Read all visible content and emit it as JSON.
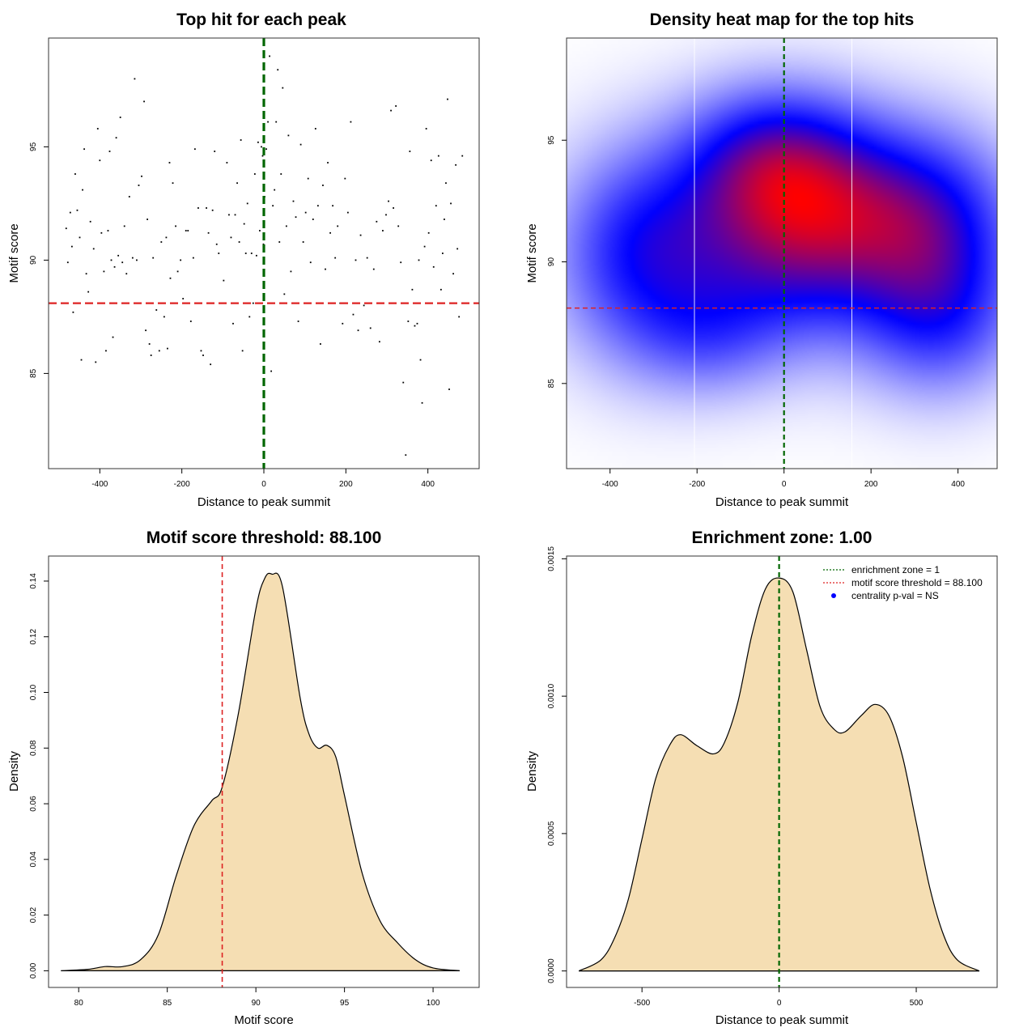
{
  "chart_data": [
    {
      "type": "scatter",
      "title": "Top hit for each peak",
      "xlabel": "Distance to peak summit",
      "ylabel": "Motif score",
      "xlim": [
        -525,
        525
      ],
      "ylim": [
        80.8,
        99.8
      ],
      "xticks": [
        -400,
        -200,
        0,
        200,
        400
      ],
      "yticks": [
        85,
        90,
        95
      ],
      "hlines": [
        {
          "y": 88.1,
          "color": "#dd2222",
          "style": "dashed"
        }
      ],
      "vlines": [
        {
          "x": 0,
          "color": "#006600",
          "style": "dashed"
        }
      ],
      "points": [
        [
          -482,
          91.4
        ],
        [
          -478,
          89.9
        ],
        [
          -472,
          92.1
        ],
        [
          -468,
          90.6
        ],
        [
          -465,
          87.7
        ],
        [
          -460,
          93.8
        ],
        [
          -455,
          92.2
        ],
        [
          -449,
          91.0
        ],
        [
          -445,
          85.6
        ],
        [
          -442,
          93.1
        ],
        [
          -438,
          94.9
        ],
        [
          -433,
          89.4
        ],
        [
          -428,
          88.6
        ],
        [
          -423,
          91.7
        ],
        [
          -415,
          90.5
        ],
        [
          -410,
          85.5
        ],
        [
          -405,
          95.8
        ],
        [
          -400,
          94.4
        ],
        [
          -396,
          91.2
        ],
        [
          -390,
          89.5
        ],
        [
          -385,
          86.0
        ],
        [
          -380,
          91.3
        ],
        [
          -376,
          94.8
        ],
        [
          -372,
          90.0
        ],
        [
          -368,
          86.6
        ],
        [
          -364,
          89.7
        ],
        [
          -360,
          95.4
        ],
        [
          -355,
          90.2
        ],
        [
          -350,
          96.3
        ],
        [
          -345,
          89.9
        ],
        [
          -340,
          91.5
        ],
        [
          -335,
          89.4
        ],
        [
          -328,
          92.8
        ],
        [
          -320,
          90.1
        ],
        [
          -315,
          98.0
        ],
        [
          -310,
          90.0
        ],
        [
          -305,
          93.3
        ],
        [
          -298,
          93.7
        ],
        [
          -292,
          97.0
        ],
        [
          -288,
          86.9
        ],
        [
          -284,
          91.8
        ],
        [
          -279,
          86.3
        ],
        [
          -275,
          85.8
        ],
        [
          -270,
          90.1
        ],
        [
          -262,
          87.8
        ],
        [
          -255,
          86.0
        ],
        [
          -250,
          90.8
        ],
        [
          -243,
          87.5
        ],
        [
          -238,
          91.0
        ],
        [
          -235,
          86.1
        ],
        [
          -230,
          94.3
        ],
        [
          -228,
          89.2
        ],
        [
          -222,
          93.4
        ],
        [
          -215,
          91.5
        ],
        [
          -210,
          89.5
        ],
        [
          -203,
          90.0
        ],
        [
          -197,
          88.3
        ],
        [
          -190,
          91.3
        ],
        [
          -185,
          91.3
        ],
        [
          -178,
          87.3
        ],
        [
          -172,
          90.1
        ],
        [
          -168,
          94.9
        ],
        [
          -160,
          92.3
        ],
        [
          -153,
          86.0
        ],
        [
          -148,
          85.8
        ],
        [
          -140,
          92.3
        ],
        [
          -135,
          91.2
        ],
        [
          -130,
          85.4
        ],
        [
          -125,
          92.2
        ],
        [
          -120,
          94.8
        ],
        [
          -115,
          90.7
        ],
        [
          -110,
          90.3
        ],
        [
          -105,
          88.1
        ],
        [
          -98,
          89.1
        ],
        [
          -90,
          94.3
        ],
        [
          -85,
          92.0
        ],
        [
          -80,
          91.0
        ],
        [
          -75,
          87.2
        ],
        [
          -70,
          92.0
        ],
        [
          -65,
          93.4
        ],
        [
          -60,
          90.8
        ],
        [
          -56,
          95.3
        ],
        [
          -52,
          86.0
        ],
        [
          -48,
          91.6
        ],
        [
          -44,
          90.3
        ],
        [
          -40,
          92.5
        ],
        [
          -35,
          87.5
        ],
        [
          -30,
          90.3
        ],
        [
          -26,
          88.1
        ],
        [
          -22,
          93.8
        ],
        [
          -18,
          90.2
        ],
        [
          -14,
          95.2
        ],
        [
          -10,
          91.3
        ],
        [
          -6,
          95.0
        ],
        [
          -3,
          94.6
        ],
        [
          -1,
          90.7
        ],
        [
          2,
          92.8
        ],
        [
          6,
          94.9
        ],
        [
          10,
          96.1
        ],
        [
          14,
          99.0
        ],
        [
          18,
          85.1
        ],
        [
          22,
          92.4
        ],
        [
          26,
          93.1
        ],
        [
          30,
          96.1
        ],
        [
          34,
          98.4
        ],
        [
          38,
          90.8
        ],
        [
          42,
          93.8
        ],
        [
          46,
          97.6
        ],
        [
          50,
          88.5
        ],
        [
          55,
          91.5
        ],
        [
          60,
          95.5
        ],
        [
          66,
          89.5
        ],
        [
          72,
          92.6
        ],
        [
          78,
          91.9
        ],
        [
          84,
          87.3
        ],
        [
          90,
          95.1
        ],
        [
          96,
          90.8
        ],
        [
          102,
          92.1
        ],
        [
          108,
          93.6
        ],
        [
          114,
          89.9
        ],
        [
          120,
          91.8
        ],
        [
          126,
          95.8
        ],
        [
          132,
          92.4
        ],
        [
          138,
          86.3
        ],
        [
          144,
          93.3
        ],
        [
          150,
          89.6
        ],
        [
          156,
          94.3
        ],
        [
          162,
          91.2
        ],
        [
          168,
          92.4
        ],
        [
          174,
          90.1
        ],
        [
          180,
          91.5
        ],
        [
          186,
          88.1
        ],
        [
          192,
          87.2
        ],
        [
          198,
          93.6
        ],
        [
          205,
          92.1
        ],
        [
          212,
          96.1
        ],
        [
          218,
          87.6
        ],
        [
          224,
          90.0
        ],
        [
          230,
          86.9
        ],
        [
          236,
          91.1
        ],
        [
          244,
          88.0
        ],
        [
          252,
          90.1
        ],
        [
          260,
          87.0
        ],
        [
          268,
          89.6
        ],
        [
          275,
          91.7
        ],
        [
          282,
          86.4
        ],
        [
          290,
          91.3
        ],
        [
          298,
          92.0
        ],
        [
          304,
          92.6
        ],
        [
          310,
          96.6
        ],
        [
          316,
          92.3
        ],
        [
          322,
          96.8
        ],
        [
          328,
          91.5
        ],
        [
          334,
          89.9
        ],
        [
          340,
          84.6
        ],
        [
          346,
          81.4
        ],
        [
          352,
          87.3
        ],
        [
          356,
          94.8
        ],
        [
          362,
          88.7
        ],
        [
          368,
          87.1
        ],
        [
          374,
          87.2
        ],
        [
          378,
          90.0
        ],
        [
          382,
          85.6
        ],
        [
          386,
          83.7
        ],
        [
          392,
          90.6
        ],
        [
          396,
          95.8
        ],
        [
          402,
          91.2
        ],
        [
          408,
          94.4
        ],
        [
          414,
          89.7
        ],
        [
          420,
          92.4
        ],
        [
          426,
          94.6
        ],
        [
          432,
          88.7
        ],
        [
          436,
          90.3
        ],
        [
          440,
          91.8
        ],
        [
          444,
          93.4
        ],
        [
          448,
          97.1
        ],
        [
          452,
          84.3
        ],
        [
          456,
          92.5
        ],
        [
          462,
          89.4
        ],
        [
          468,
          94.2
        ],
        [
          472,
          90.5
        ],
        [
          476,
          87.5
        ],
        [
          484,
          94.6
        ]
      ]
    },
    {
      "type": "heatmap",
      "title": "Density heat map for the top hits",
      "xlabel": "Distance to peak summit",
      "ylabel": "Motif score",
      "xlim": [
        -500,
        490
      ],
      "ylim": [
        81.5,
        99.2
      ],
      "xticks": [
        -400,
        -200,
        0,
        200,
        400
      ],
      "yticks": [
        85,
        90,
        95
      ],
      "hlines": [
        {
          "y": 88.1,
          "color": "#dd2222",
          "style": "dashed"
        }
      ],
      "vlines": [
        {
          "x": 0,
          "color": "#006600",
          "style": "dashed"
        }
      ],
      "boundaries": [
        -206,
        156
      ],
      "color_scale": [
        "#ffffff",
        "#0000ff",
        "#ff0000"
      ],
      "blobs": [
        {
          "x": 30,
          "y": 91.0,
          "sx": 190,
          "sy": 2.7,
          "w": 1.0
        },
        {
          "x": -20,
          "y": 94.2,
          "sx": 140,
          "sy": 2.0,
          "w": 0.72
        },
        {
          "x": -330,
          "y": 90.3,
          "sx": 130,
          "sy": 2.8,
          "w": 0.62
        },
        {
          "x": 350,
          "y": 90.4,
          "sx": 130,
          "sy": 2.8,
          "w": 0.6
        },
        {
          "x": 230,
          "y": 92.5,
          "sx": 160,
          "sy": 2.2,
          "w": 0.35
        },
        {
          "x": -170,
          "y": 87.0,
          "sx": 120,
          "sy": 1.7,
          "w": 0.3
        },
        {
          "x": 360,
          "y": 87.3,
          "sx": 120,
          "sy": 2.0,
          "w": 0.3
        }
      ]
    },
    {
      "type": "area",
      "title": "Motif score threshold: 88.100",
      "xlabel": "Motif score",
      "ylabel": "Density",
      "xlim": [
        78.3,
        102.6
      ],
      "ylim": [
        -0.006,
        0.149
      ],
      "xticks": [
        80,
        85,
        90,
        95,
        100
      ],
      "yticks": [
        0.0,
        0.02,
        0.04,
        0.06,
        0.08,
        0.1,
        0.12,
        0.14
      ],
      "ytick_labels": [
        "0.00",
        "0.02",
        "0.04",
        "0.06",
        "0.08",
        "0.10",
        "0.12",
        "0.14"
      ],
      "fill": "#f5deb3",
      "vlines": [
        {
          "x": 88.1,
          "color": "#dd2222",
          "style": "dashed"
        }
      ],
      "x": [
        79.0,
        80.5,
        81.5,
        82.5,
        83.5,
        84.5,
        85.5,
        86.5,
        87.5,
        88.1,
        89.0,
        90.0,
        90.5,
        90.9,
        91.5,
        92.5,
        93.0,
        93.5,
        94.0,
        94.5,
        95.0,
        96.0,
        97.0,
        98.0,
        99.0,
        100.0,
        101.5
      ],
      "y": [
        0.0,
        0.0005,
        0.0015,
        0.0015,
        0.004,
        0.013,
        0.034,
        0.052,
        0.061,
        0.066,
        0.092,
        0.13,
        0.141,
        0.1425,
        0.138,
        0.098,
        0.085,
        0.08,
        0.081,
        0.077,
        0.063,
        0.035,
        0.018,
        0.01,
        0.004,
        0.001,
        0.0
      ]
    },
    {
      "type": "area",
      "title": "Enrichment zone: 1.00",
      "xlabel": "Distance to peak summit",
      "ylabel": "Density",
      "xlim": [
        -775,
        795
      ],
      "ylim": [
        -6e-05,
        0.00151
      ],
      "xticks": [
        -500,
        0,
        500
      ],
      "yticks": [
        0.0,
        0.0005,
        0.001,
        0.0015
      ],
      "ytick_labels": [
        "0.0000",
        "0.0005",
        "0.0010",
        "0.0015"
      ],
      "fill": "#f5deb3",
      "vlines": [
        {
          "x": 0,
          "color": "#006600",
          "style": "dashed"
        }
      ],
      "x": [
        -730,
        -650,
        -600,
        -550,
        -500,
        -450,
        -400,
        -360,
        -300,
        -240,
        -200,
        -150,
        -100,
        -50,
        0,
        50,
        100,
        150,
        200,
        240,
        300,
        350,
        400,
        450,
        500,
        550,
        600,
        650,
        730
      ],
      "y": [
        0.0,
        4e-05,
        0.00012,
        0.00026,
        0.00048,
        0.0007,
        0.00082,
        0.00086,
        0.00082,
        0.00079,
        0.00083,
        0.00098,
        0.00122,
        0.00139,
        0.00143,
        0.00138,
        0.00117,
        0.00096,
        0.00088,
        0.00087,
        0.00093,
        0.00097,
        0.00093,
        0.00078,
        0.00054,
        0.0003,
        0.00013,
        4e-05,
        0.0
      ],
      "legend": [
        {
          "label": "enrichment zone = 1",
          "color": "#006600",
          "style": "dotted-line"
        },
        {
          "label": "motif score threshold = 88.100",
          "color": "#dd2222",
          "style": "dotted-line"
        },
        {
          "label": "centrality p-val = NS",
          "color": "#0000ff",
          "style": "point"
        }
      ]
    }
  ]
}
